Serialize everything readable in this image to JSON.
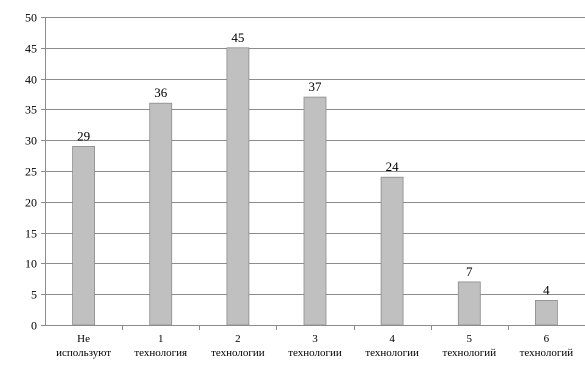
{
  "chart_data": {
    "type": "bar",
    "title": "",
    "xlabel": "",
    "ylabel": "",
    "categories": [
      [
        "Не",
        "используют"
      ],
      [
        "1",
        "технология"
      ],
      [
        "2",
        "технологии"
      ],
      [
        "3",
        "технологии"
      ],
      [
        "4",
        "технологии"
      ],
      [
        "5",
        "технологий"
      ],
      [
        "6",
        "технологий"
      ]
    ],
    "values": [
      29,
      36,
      45,
      37,
      24,
      7,
      4
    ],
    "ylim": [
      0,
      50
    ],
    "yticks": [
      0,
      5,
      10,
      15,
      20,
      25,
      30,
      35,
      40,
      45,
      50
    ],
    "grid": true,
    "legend": "none",
    "colors": {
      "bar_fill": "#c0c0c0",
      "bar_stroke": "#8c8c8c",
      "grid": "#8c8c8c",
      "axis": "#8c8c8c"
    }
  }
}
